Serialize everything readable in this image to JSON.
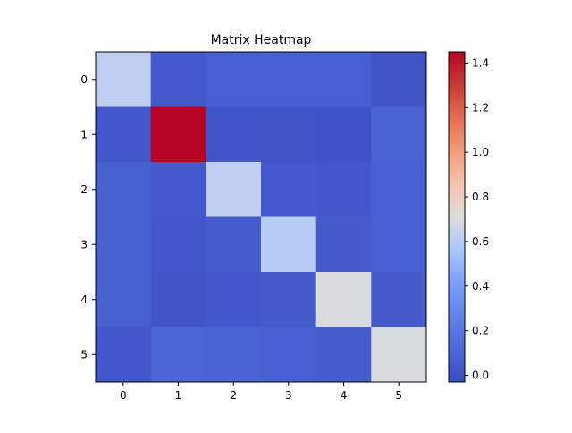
{
  "chart_data": {
    "type": "heatmap",
    "title": "Matrix Heatmap",
    "x_ticks": [
      "0",
      "1",
      "2",
      "3",
      "4",
      "5"
    ],
    "y_ticks": [
      "0",
      "1",
      "2",
      "3",
      "4",
      "5"
    ],
    "values": [
      [
        0.62,
        0.04,
        0.07,
        0.07,
        0.07,
        0.01
      ],
      [
        0.03,
        1.45,
        0.02,
        0.01,
        0.0,
        0.09
      ],
      [
        0.08,
        0.04,
        0.62,
        0.04,
        0.03,
        0.07
      ],
      [
        0.08,
        0.03,
        0.06,
        0.6,
        0.05,
        0.07
      ],
      [
        0.08,
        0.01,
        0.03,
        0.05,
        0.7,
        0.05
      ],
      [
        0.03,
        0.11,
        0.09,
        0.07,
        0.06,
        0.7
      ]
    ],
    "colormap": "coolwarm",
    "vmin": -0.03,
    "vmax": 1.45,
    "colorbar_ticks": [
      "0.0",
      "0.2",
      "0.4",
      "0.6",
      "0.8",
      "1.0",
      "1.2",
      "1.4"
    ]
  }
}
